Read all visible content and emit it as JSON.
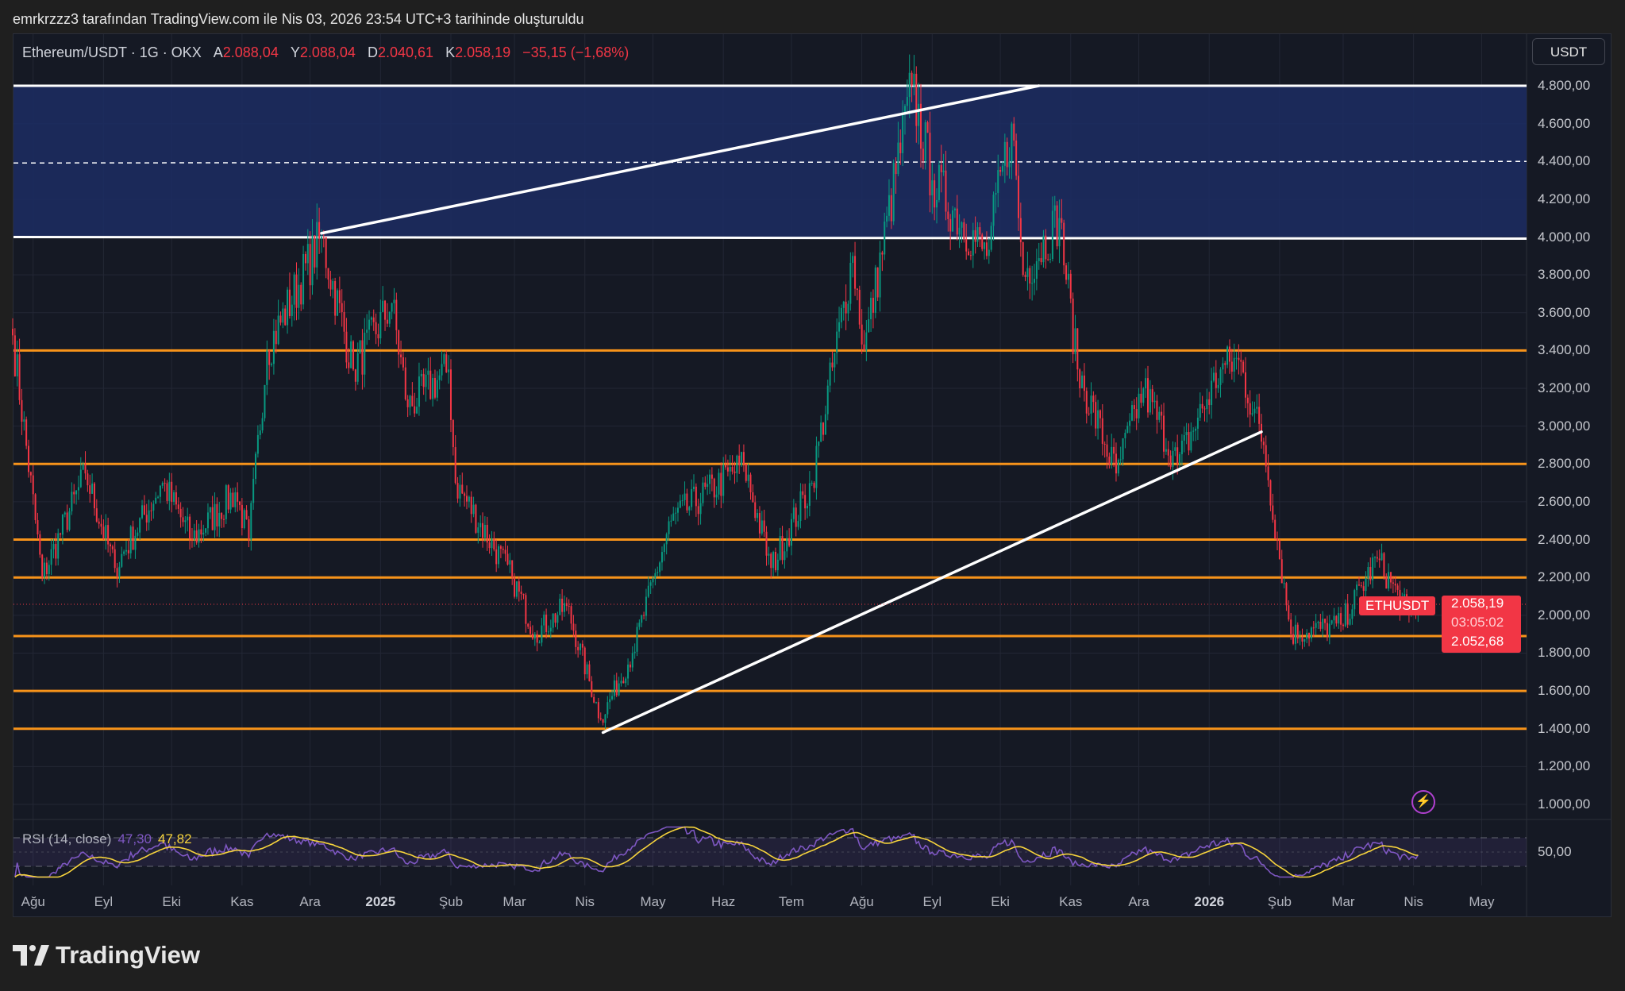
{
  "caption": "emrkrzzz3 tarafından TradingView.com ile Nis 03, 2026 23:54 UTC+3 tarihinde oluşturuldu",
  "legend": {
    "symbol": "Ethereum/USDT · 1G · OKX",
    "o_label": "A",
    "o": "2.088,04",
    "h_label": "Y",
    "h": "2.088,04",
    "l_label": "D",
    "l": "2.040,61",
    "c_label": "K",
    "c": "2.058,19",
    "change": "−35,15 (−1,68%)"
  },
  "currency_button": "USDT",
  "price_tag": {
    "symbol": "ETHUSDT",
    "last": "2.058,19",
    "countdown": "03:05:02",
    "second": "2.052,68"
  },
  "rsi": {
    "label": "RSI (14, close)",
    "value": "47,30",
    "ma": "47,82",
    "level_label": "50,00"
  },
  "logo": "TradingView",
  "colors": {
    "up": "#089981",
    "down": "#f23645",
    "levels": "#f7931a",
    "zone": "#1c2d63",
    "rsi": "#7e57c2",
    "rsi_ma": "#f7d43c"
  },
  "chart_data": {
    "type": "candlestick",
    "title": "Ethereum/USDT · 1G · OKX",
    "ylim": [
      1000,
      4800
    ],
    "y_ticks": [
      "4.800,00",
      "4.600,00",
      "4.400,00",
      "4.200,00",
      "4.000,00",
      "3.800,00",
      "3.600,00",
      "3.400,00",
      "3.200,00",
      "3.000,00",
      "2.800,00",
      "2.600,00",
      "2.400,00",
      "2.200,00",
      "2.000,00",
      "1.800,00",
      "1.600,00",
      "1.400,00",
      "1.200,00",
      "1.000,00"
    ],
    "x_ticks": [
      {
        "label": "Ağu",
        "date": "2024-08-01"
      },
      {
        "label": "Eyl",
        "date": "2024-09-01"
      },
      {
        "label": "Eki",
        "date": "2024-10-01"
      },
      {
        "label": "Kas",
        "date": "2024-11-01"
      },
      {
        "label": "Ara",
        "date": "2024-12-01"
      },
      {
        "label": "2025",
        "date": "2025-01-01",
        "bold": true
      },
      {
        "label": "Şub",
        "date": "2025-02-01"
      },
      {
        "label": "Mar",
        "date": "2025-03-01"
      },
      {
        "label": "Nis",
        "date": "2025-04-01"
      },
      {
        "label": "May",
        "date": "2025-05-01"
      },
      {
        "label": "Haz",
        "date": "2025-06-01"
      },
      {
        "label": "Tem",
        "date": "2025-07-01"
      },
      {
        "label": "Ağu",
        "date": "2025-08-01"
      },
      {
        "label": "Eyl",
        "date": "2025-09-01"
      },
      {
        "label": "Eki",
        "date": "2025-10-01"
      },
      {
        "label": "Kas",
        "date": "2025-11-01"
      },
      {
        "label": "Ara",
        "date": "2025-12-01"
      },
      {
        "label": "2026",
        "date": "2026-01-01",
        "bold": true
      },
      {
        "label": "Şub",
        "date": "2026-02-01"
      },
      {
        "label": "Mar",
        "date": "2026-03-01"
      },
      {
        "label": "Nis",
        "date": "2026-04-01"
      },
      {
        "label": "May",
        "date": "2026-05-01"
      }
    ],
    "x_start": "2024-07-23",
    "close_path": [
      [
        "2024-07-23",
        3480
      ],
      [
        "2024-08-05",
        2200
      ],
      [
        "2024-08-24",
        2750
      ],
      [
        "2024-09-06",
        2250
      ],
      [
        "2024-09-27",
        2700
      ],
      [
        "2024-10-10",
        2400
      ],
      [
        "2024-10-29",
        2650
      ],
      [
        "2024-11-04",
        2400
      ],
      [
        "2024-11-12",
        3400
      ],
      [
        "2024-12-06",
        4000
      ],
      [
        "2024-12-20",
        3300
      ],
      [
        "2025-01-06",
        3650
      ],
      [
        "2025-01-13",
        3100
      ],
      [
        "2025-01-31",
        3300
      ],
      [
        "2025-02-03",
        2700
      ],
      [
        "2025-02-28",
        2200
      ],
      [
        "2025-03-10",
        1900
      ],
      [
        "2025-03-24",
        2050
      ],
      [
        "2025-04-08",
        1450
      ],
      [
        "2025-04-22",
        1800
      ],
      [
        "2025-05-09",
        2500
      ],
      [
        "2025-06-10",
        2800
      ],
      [
        "2025-06-22",
        2250
      ],
      [
        "2025-07-10",
        2700
      ],
      [
        "2025-07-28",
        3900
      ],
      [
        "2025-08-02",
        3400
      ],
      [
        "2025-08-23",
        4800
      ],
      [
        "2025-09-01",
        4300
      ],
      [
        "2025-09-25",
        3900
      ],
      [
        "2025-10-06",
        4600
      ],
      [
        "2025-10-11",
        3800
      ],
      [
        "2025-10-27",
        4100
      ],
      [
        "2025-11-04",
        3300
      ],
      [
        "2025-11-21",
        2750
      ],
      [
        "2025-12-03",
        3200
      ],
      [
        "2025-12-18",
        2800
      ],
      [
        "2026-01-06",
        3300
      ],
      [
        "2026-01-14",
        3350
      ],
      [
        "2026-01-25",
        2900
      ],
      [
        "2026-02-06",
        1900
      ],
      [
        "2026-02-28",
        1950
      ],
      [
        "2026-03-16",
        2300
      ],
      [
        "2026-03-30",
        2000
      ],
      [
        "2026-04-03",
        2058
      ]
    ],
    "last_price": 2058.19,
    "horizontal_levels": [
      3400,
      2800,
      2400,
      2200,
      1890,
      1600,
      1400
    ],
    "zone": {
      "top": 4800,
      "bottom": 4000,
      "mid_dashed": 4400
    },
    "trendlines": [
      {
        "from": [
          "2024-12-06",
          4020
        ],
        "to": [
          "2025-10-18",
          4800
        ]
      },
      {
        "from": [
          "2025-04-09",
          1380
        ],
        "to": [
          "2026-01-24",
          2970
        ]
      }
    ],
    "rsi_levels": [
      70,
      50,
      30
    ]
  }
}
